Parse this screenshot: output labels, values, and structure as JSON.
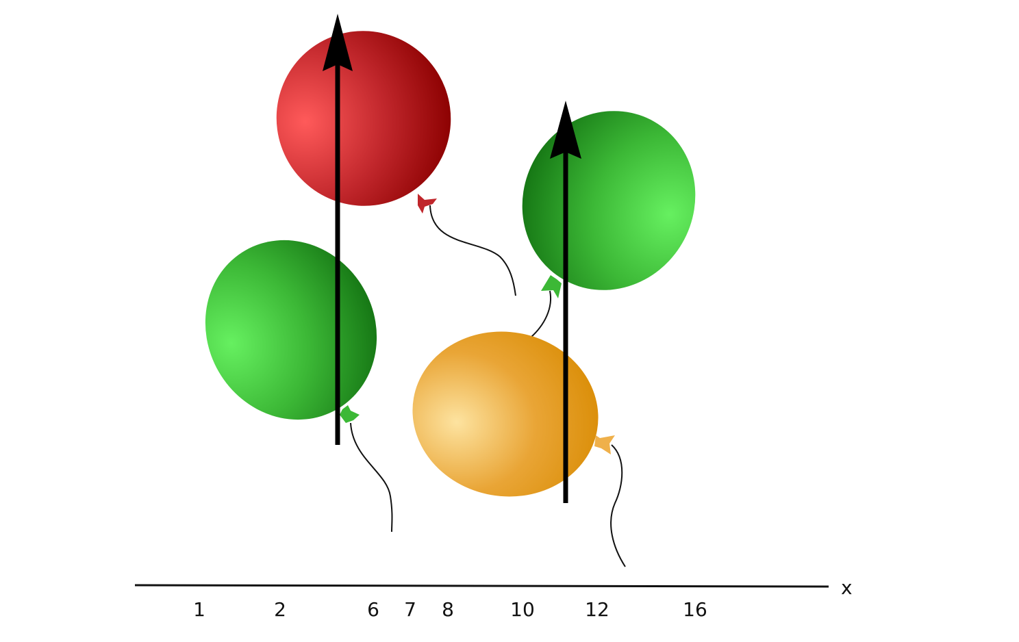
{
  "axis": {
    "name": "x",
    "tick_labels": [
      "1",
      "2",
      "6",
      "7",
      "8",
      "10",
      "12",
      "16"
    ]
  },
  "balloons": [
    {
      "id": "red",
      "color": "#c0161b",
      "highlight": "#ff5a5a",
      "shadow": "#8b0000"
    },
    {
      "id": "green-left",
      "color": "#2f9a2a",
      "highlight": "#66f060",
      "shadow": "#137212"
    },
    {
      "id": "green-right",
      "color": "#2f9a2a",
      "highlight": "#66f060",
      "shadow": "#137212"
    },
    {
      "id": "orange",
      "color": "#e0920b",
      "highlight": "#fde3a0",
      "shadow": "#d88a00"
    }
  ],
  "arrow_color": "#000000"
}
